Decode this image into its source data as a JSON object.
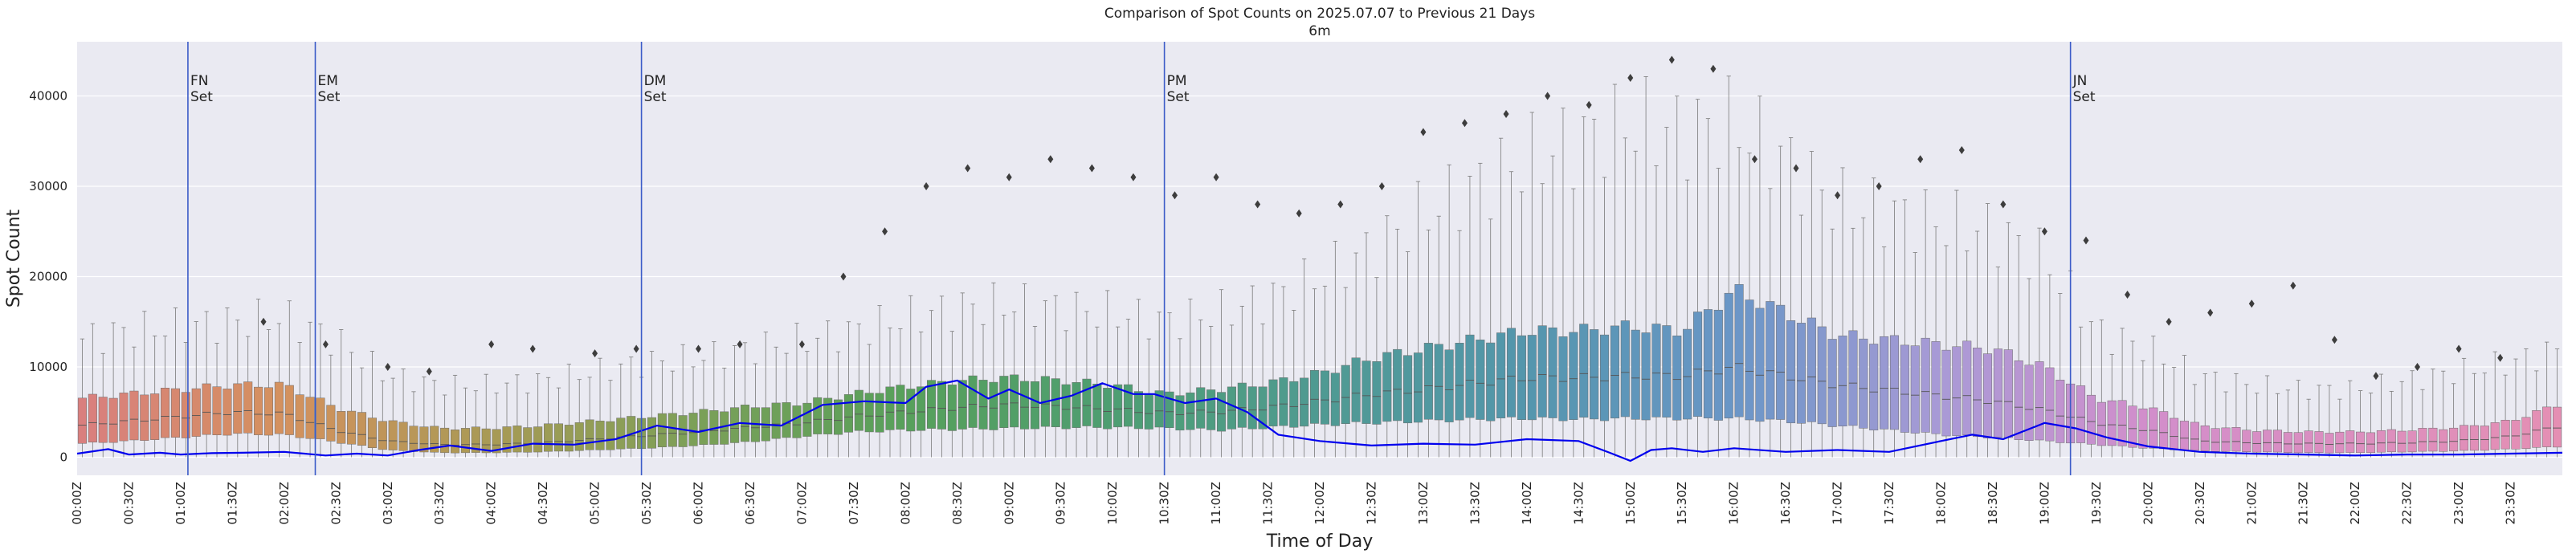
{
  "chart_data": {
    "type": "box",
    "title": "Comparison of Spot Counts on 2025.07.07 to Previous 21 Days",
    "subtitle": "6m",
    "xlabel": "Time of Day",
    "ylabel": "Spot Count",
    "ylim": [
      -2000,
      46000
    ],
    "xlim_hours": [
      0,
      24
    ],
    "interval_minutes": 6,
    "grid": true,
    "y_ticks": [
      0,
      10000,
      20000,
      30000,
      40000
    ],
    "y_tick_labels": [
      "0",
      "10000",
      "20000",
      "30000",
      "40000"
    ],
    "x_tick_labels": [
      "00:00Z",
      "00:30Z",
      "01:00Z",
      "01:30Z",
      "02:00Z",
      "02:30Z",
      "03:00Z",
      "03:30Z",
      "04:00Z",
      "04:30Z",
      "05:00Z",
      "05:30Z",
      "06:00Z",
      "06:30Z",
      "07:00Z",
      "07:30Z",
      "08:00Z",
      "08:30Z",
      "09:00Z",
      "09:30Z",
      "10:00Z",
      "10:30Z",
      "11:00Z",
      "11:30Z",
      "12:00Z",
      "12:30Z",
      "13:00Z",
      "13:30Z",
      "14:00Z",
      "14:30Z",
      "15:00Z",
      "15:30Z",
      "16:00Z",
      "16:30Z",
      "17:00Z",
      "17:30Z",
      "18:00Z",
      "18:30Z",
      "19:00Z",
      "19:30Z",
      "20:00Z",
      "20:30Z",
      "21:00Z",
      "21:30Z",
      "22:00Z",
      "22:30Z",
      "23:00Z",
      "23:30Z"
    ],
    "q1_profile": {
      "hours": [
        0,
        0.5,
        1,
        1.5,
        2,
        2.5,
        3,
        3.5,
        4,
        4.5,
        5,
        5.5,
        6,
        6.5,
        7,
        7.5,
        8,
        8.5,
        9,
        9.5,
        10,
        10.5,
        11,
        11.5,
        12,
        12.5,
        13,
        13.5,
        14,
        14.5,
        15,
        15.5,
        16,
        16.5,
        17,
        17.5,
        18,
        18.5,
        19,
        19.5,
        20,
        20.5,
        21,
        21.5,
        22,
        22.5,
        23,
        23.5,
        24
      ],
      "values": [
        1500,
        1800,
        2200,
        2600,
        2500,
        1700,
        800,
        500,
        500,
        600,
        800,
        1000,
        1300,
        1700,
        2300,
        2800,
        3000,
        3100,
        3200,
        3300,
        3300,
        3200,
        3000,
        3300,
        3600,
        3800,
        4000,
        4200,
        4300,
        4200,
        4300,
        4300,
        4300,
        4000,
        3500,
        3000,
        2500,
        2200,
        1800,
        1400,
        1000,
        700,
        600,
        500,
        500,
        600,
        700,
        900,
        1200
      ]
    },
    "q3_profile": {
      "hours": [
        0,
        0.5,
        1,
        1.5,
        2,
        2.5,
        3,
        3.5,
        4,
        4.5,
        5,
        5.5,
        6,
        6.5,
        7,
        7.5,
        8,
        8.5,
        9,
        9.5,
        10,
        10.5,
        11,
        11.5,
        12,
        12.5,
        13,
        13.5,
        14,
        14.5,
        15,
        15.5,
        16,
        16.5,
        17,
        17.5,
        18,
        18.5,
        19,
        19.5,
        20,
        20.5,
        21,
        21.5,
        22,
        22.5,
        23,
        23.5,
        24
      ],
      "values": [
        6500,
        7000,
        7500,
        8000,
        8000,
        5500,
        4000,
        3200,
        3200,
        3500,
        4000,
        4500,
        5000,
        5600,
        6000,
        7000,
        7800,
        8500,
        8800,
        8500,
        8000,
        7000,
        7500,
        8200,
        9300,
        11000,
        12000,
        13000,
        14000,
        14000,
        14500,
        14000,
        18500,
        16000,
        13500,
        13000,
        12500,
        12000,
        10000,
        6500,
        5500,
        3500,
        3000,
        2800,
        2800,
        3000,
        3300,
        4000,
        6000
      ]
    },
    "median_profile": {
      "hours": [
        0,
        0.5,
        1,
        1.5,
        2,
        2.5,
        3,
        3.5,
        4,
        4.5,
        5,
        5.5,
        6,
        6.5,
        7,
        7.5,
        8,
        8.5,
        9,
        9.5,
        10,
        10.5,
        11,
        11.5,
        12,
        12.5,
        13,
        13.5,
        14,
        14.5,
        15,
        15.5,
        16,
        16.5,
        17,
        17.5,
        18,
        18.5,
        19,
        19.5,
        20,
        20.5,
        21,
        21.5,
        22,
        22.5,
        23,
        23.5,
        24
      ],
      "values": [
        3500,
        4000,
        4500,
        5000,
        4800,
        3000,
        1800,
        1400,
        1400,
        1600,
        2000,
        2400,
        2800,
        3300,
        3800,
        4500,
        5000,
        5500,
        5800,
        5600,
        5300,
        4900,
        5000,
        5500,
        6200,
        7000,
        7500,
        8200,
        8800,
        8800,
        9000,
        9000,
        10000,
        9000,
        8000,
        7400,
        6800,
        6200,
        5200,
        3800,
        3000,
        1800,
        1600,
        1500,
        1500,
        1600,
        1800,
        2300,
        3500
      ]
    },
    "whisker_top_profile": {
      "hours": [
        0,
        0.5,
        1,
        1.5,
        2,
        2.5,
        3,
        3.5,
        4,
        4.5,
        5,
        5.5,
        6,
        6.5,
        7,
        7.5,
        8,
        8.5,
        9,
        9.5,
        10,
        10.5,
        11,
        11.5,
        12,
        12.5,
        13,
        13.5,
        14,
        14.5,
        15,
        15.5,
        16,
        16.5,
        17,
        17.5,
        18,
        18.5,
        19,
        19.5,
        20,
        20.5,
        21,
        21.5,
        22,
        22.5,
        23,
        23.5,
        24
      ],
      "values": [
        13000,
        14000,
        14500,
        15000,
        15500,
        13000,
        9000,
        8000,
        8000,
        8500,
        9500,
        10500,
        11000,
        12000,
        13000,
        14000,
        15500,
        16500,
        17000,
        16500,
        16000,
        15000,
        16000,
        17500,
        20000,
        23000,
        27000,
        30000,
        33000,
        35000,
        37000,
        36000,
        37000,
        33000,
        28000,
        27000,
        26000,
        25000,
        22000,
        14000,
        12000,
        9000,
        8000,
        7500,
        7500,
        8500,
        9500,
        10500,
        12000
      ]
    },
    "whisker_bottom_profile": {
      "hours": [
        0,
        6,
        12,
        18,
        24
      ],
      "values": [
        0,
        0,
        0,
        0,
        0
      ]
    },
    "outliers": {
      "hours": [
        1.8,
        2.4,
        3.0,
        3.4,
        4.0,
        4.4,
        5.0,
        5.4,
        6.0,
        6.4,
        7.0,
        7.4,
        7.8,
        8.2,
        8.6,
        9.0,
        9.4,
        9.8,
        10.2,
        10.6,
        11.0,
        11.4,
        11.8,
        12.2,
        12.6,
        13.0,
        13.4,
        13.8,
        14.2,
        14.6,
        15.0,
        15.4,
        15.8,
        16.2,
        16.6,
        17.0,
        17.4,
        17.8,
        18.2,
        18.6,
        19.0,
        19.4,
        19.8,
        20.2,
        20.6,
        21.0,
        21.4,
        21.8,
        22.2,
        22.6,
        23.0,
        23.4
      ],
      "values": [
        15000,
        12500,
        10000,
        9500,
        12500,
        12000,
        11500,
        12000,
        12000,
        12500,
        12500,
        20000,
        25000,
        30000,
        32000,
        31000,
        33000,
        32000,
        31000,
        29000,
        31000,
        28000,
        27000,
        28000,
        30000,
        36000,
        37000,
        38000,
        40000,
        39000,
        42000,
        44000,
        43000,
        33000,
        32000,
        29000,
        30000,
        33000,
        34000,
        28000,
        25000,
        24000,
        18000,
        15000,
        16000,
        17000,
        19000,
        13000,
        9000,
        10000,
        12000,
        11000
      ]
    },
    "series": [
      {
        "name": "2025.07.07",
        "color": "#0000ee",
        "hours": [
          0,
          0.3,
          0.5,
          0.8,
          1.0,
          1.3,
          1.6,
          2.0,
          2.4,
          2.7,
          3.0,
          3.3,
          3.6,
          4.0,
          4.4,
          4.8,
          5.2,
          5.6,
          6.0,
          6.4,
          6.8,
          7.2,
          7.6,
          8.0,
          8.2,
          8.5,
          8.8,
          9.0,
          9.3,
          9.6,
          9.9,
          10.2,
          10.4,
          10.7,
          11.0,
          11.3,
          11.6,
          12.0,
          12.5,
          13.0,
          13.5,
          14.0,
          14.5,
          14.8,
          15.0,
          15.2,
          15.4,
          15.7,
          16.0,
          16.5,
          17.0,
          17.5,
          18.0,
          18.3,
          18.6,
          19.0,
          19.3,
          19.6,
          20.0,
          20.5,
          21.0,
          21.5,
          22.0,
          22.5,
          23.0,
          23.5,
          24.0
        ],
        "values": [
          400,
          900,
          300,
          500,
          300,
          450,
          500,
          600,
          200,
          400,
          200,
          800,
          1300,
          700,
          1500,
          1400,
          2000,
          3500,
          2800,
          3800,
          3500,
          5800,
          6200,
          6000,
          7800,
          8500,
          6500,
          7500,
          6000,
          6800,
          8200,
          7000,
          7000,
          6000,
          6500,
          5000,
          2500,
          1800,
          1300,
          1500,
          1400,
          2000,
          1800,
          500,
          -400,
          800,
          1000,
          600,
          1000,
          600,
          800,
          600,
          1800,
          2500,
          2000,
          3800,
          3200,
          2200,
          1200,
          600,
          400,
          300,
          200,
          300,
          300,
          400,
          500
        ]
      }
    ],
    "box_color_stops": [
      {
        "hour": 0,
        "color": "#d97f7f"
      },
      {
        "hour": 2,
        "color": "#d4915e"
      },
      {
        "hour": 4,
        "color": "#a89a55"
      },
      {
        "hour": 6,
        "color": "#7ba058"
      },
      {
        "hour": 8,
        "color": "#57a05b"
      },
      {
        "hour": 10,
        "color": "#4e9e72"
      },
      {
        "hour": 12,
        "color": "#4f9a92"
      },
      {
        "hour": 14,
        "color": "#5496ad"
      },
      {
        "hour": 16,
        "color": "#6a96c7"
      },
      {
        "hour": 18,
        "color": "#a99ad6"
      },
      {
        "hour": 20,
        "color": "#d28ecb"
      },
      {
        "hour": 24,
        "color": "#e58fb3"
      }
    ],
    "annotations": [
      {
        "hour": 1.07,
        "line1": "FN",
        "line2": "Set"
      },
      {
        "hour": 2.3,
        "line1": "EM",
        "line2": "Set"
      },
      {
        "hour": 5.45,
        "line1": "DM",
        "line2": "Set"
      },
      {
        "hour": 10.5,
        "line1": "PM",
        "line2": "Set"
      },
      {
        "hour": 19.25,
        "line1": "JN",
        "line2": "Set"
      }
    ]
  }
}
